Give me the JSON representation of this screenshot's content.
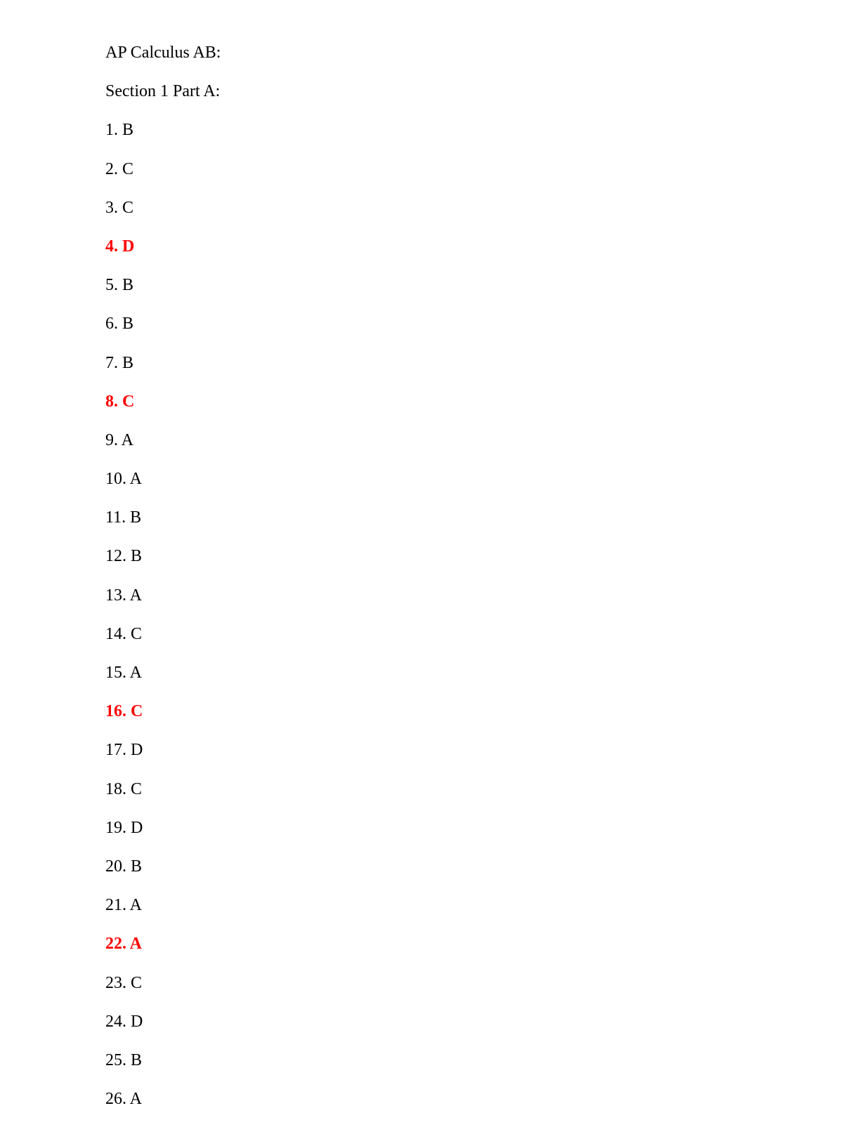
{
  "title": "AP Calculus AB:",
  "section": "Section 1 Part A:",
  "text_color": "#000000",
  "highlight_color": "#ff0000",
  "font_size": 24,
  "background_color": "#ffffff",
  "items": [
    {
      "number": 1,
      "answer": "B",
      "highlighted": false
    },
    {
      "number": 2,
      "answer": "C",
      "highlighted": false
    },
    {
      "number": 3,
      "answer": "C",
      "highlighted": false
    },
    {
      "number": 4,
      "answer": "D",
      "highlighted": true
    },
    {
      "number": 5,
      "answer": "B",
      "highlighted": false
    },
    {
      "number": 6,
      "answer": "B",
      "highlighted": false
    },
    {
      "number": 7,
      "answer": "B",
      "highlighted": false
    },
    {
      "number": 8,
      "answer": "C",
      "highlighted": true
    },
    {
      "number": 9,
      "answer": "A",
      "highlighted": false
    },
    {
      "number": 10,
      "answer": "A",
      "highlighted": false
    },
    {
      "number": 11,
      "answer": "B",
      "highlighted": false
    },
    {
      "number": 12,
      "answer": "B",
      "highlighted": false
    },
    {
      "number": 13,
      "answer": "A",
      "highlighted": false
    },
    {
      "number": 14,
      "answer": "C",
      "highlighted": false
    },
    {
      "number": 15,
      "answer": "A",
      "highlighted": false
    },
    {
      "number": 16,
      "answer": "C",
      "highlighted": true
    },
    {
      "number": 17,
      "answer": "D",
      "highlighted": false
    },
    {
      "number": 18,
      "answer": "C",
      "highlighted": false
    },
    {
      "number": 19,
      "answer": "D",
      "highlighted": false
    },
    {
      "number": 20,
      "answer": "B",
      "highlighted": false
    },
    {
      "number": 21,
      "answer": "A",
      "highlighted": false
    },
    {
      "number": 22,
      "answer": "A",
      "highlighted": true
    },
    {
      "number": 23,
      "answer": "C",
      "highlighted": false
    },
    {
      "number": 24,
      "answer": "D",
      "highlighted": false
    },
    {
      "number": 25,
      "answer": "B",
      "highlighted": false
    },
    {
      "number": 26,
      "answer": "A",
      "highlighted": false
    }
  ]
}
